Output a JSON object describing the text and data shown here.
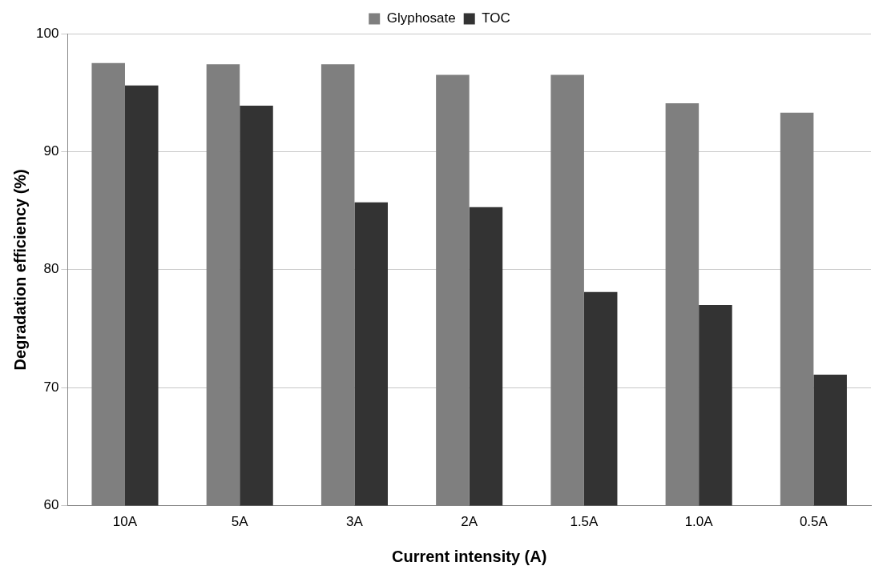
{
  "chart_data": {
    "type": "bar",
    "xlabel": "Current intensity (A)",
    "ylabel": "Degradation efficiency (%)",
    "categories": [
      "10A",
      "5A",
      "3A",
      "2A",
      "1.5A",
      "1.0A",
      "0.5A"
    ],
    "series": [
      {
        "name": "Glyphosate",
        "color": "#7f7f7f",
        "values": [
          97.5,
          97.4,
          97.4,
          96.5,
          96.5,
          94.1,
          93.3
        ]
      },
      {
        "name": "TOC",
        "color": "#333333",
        "values": [
          95.6,
          93.9,
          85.7,
          85.3,
          78.1,
          77.0,
          71.1
        ]
      }
    ],
    "ylim": [
      60,
      100
    ],
    "yticks": [
      60,
      70,
      80,
      90,
      100
    ],
    "grid": "y",
    "legend": "top"
  }
}
